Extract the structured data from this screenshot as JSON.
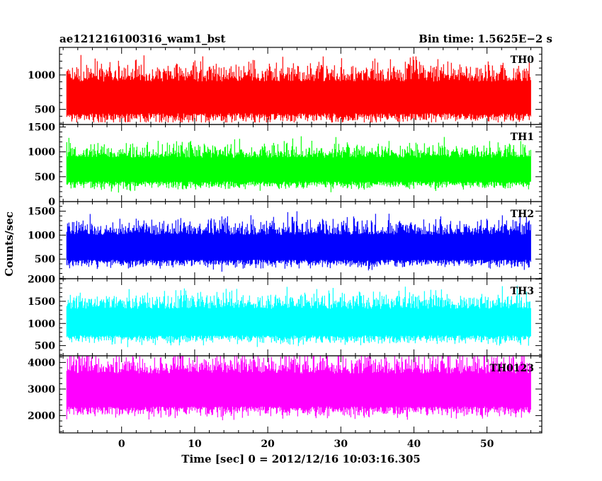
{
  "header": {
    "left_title": "ae121216100316_wam1_bst",
    "right_title": "Bin time: 1.5625E−2 s"
  },
  "chart_data": {
    "type": "line",
    "title": "ae121216100316_wam1_bst",
    "subtitle": "Bin time: 1.5625E−2 s",
    "xlabel": "Time [sec] 0 = 2012/12/16 10:03:16.305",
    "ylabel": "Counts/sec",
    "xlim": [
      -8.5,
      57.5
    ],
    "x_ticks": [
      0,
      10,
      20,
      30,
      40,
      50
    ],
    "data_x_range": [
      -7.5,
      56
    ],
    "grid": false,
    "panels": [
      {
        "name": "TH0",
        "color": "#ff0000",
        "ylim": [
          280,
          1400
        ],
        "y_ticks": [
          500,
          1000
        ],
        "baseline": 650,
        "spread": 230,
        "min_level": 310,
        "max_level": 1400
      },
      {
        "name": "TH1",
        "color": "#00ff00",
        "ylim": [
          0,
          1550
        ],
        "y_ticks": [
          0,
          500,
          1000,
          1500
        ],
        "baseline": 620,
        "spread": 240,
        "min_level": 60,
        "max_level": 1600
      },
      {
        "name": "TH2",
        "color": "#0000ff",
        "ylim": [
          90,
          1700
        ],
        "y_ticks": [
          500,
          1000,
          1500
        ],
        "baseline": 720,
        "spread": 260,
        "min_level": 120,
        "max_level": 1720
      },
      {
        "name": "TH3",
        "color": "#00ffff",
        "ylim": [
          270,
          2010
        ],
        "y_ticks": [
          500,
          1000,
          1500,
          2000
        ],
        "baseline": 1000,
        "spread": 300,
        "min_level": 330,
        "max_level": 2010
      },
      {
        "name": "TH0123",
        "color": "#ff00ff",
        "ylim": [
          1350,
          4250
        ],
        "y_ticks": [
          2000,
          3000,
          4000
        ],
        "baseline": 2900,
        "spread": 620,
        "min_level": 1420,
        "max_level": 4250
      }
    ]
  }
}
